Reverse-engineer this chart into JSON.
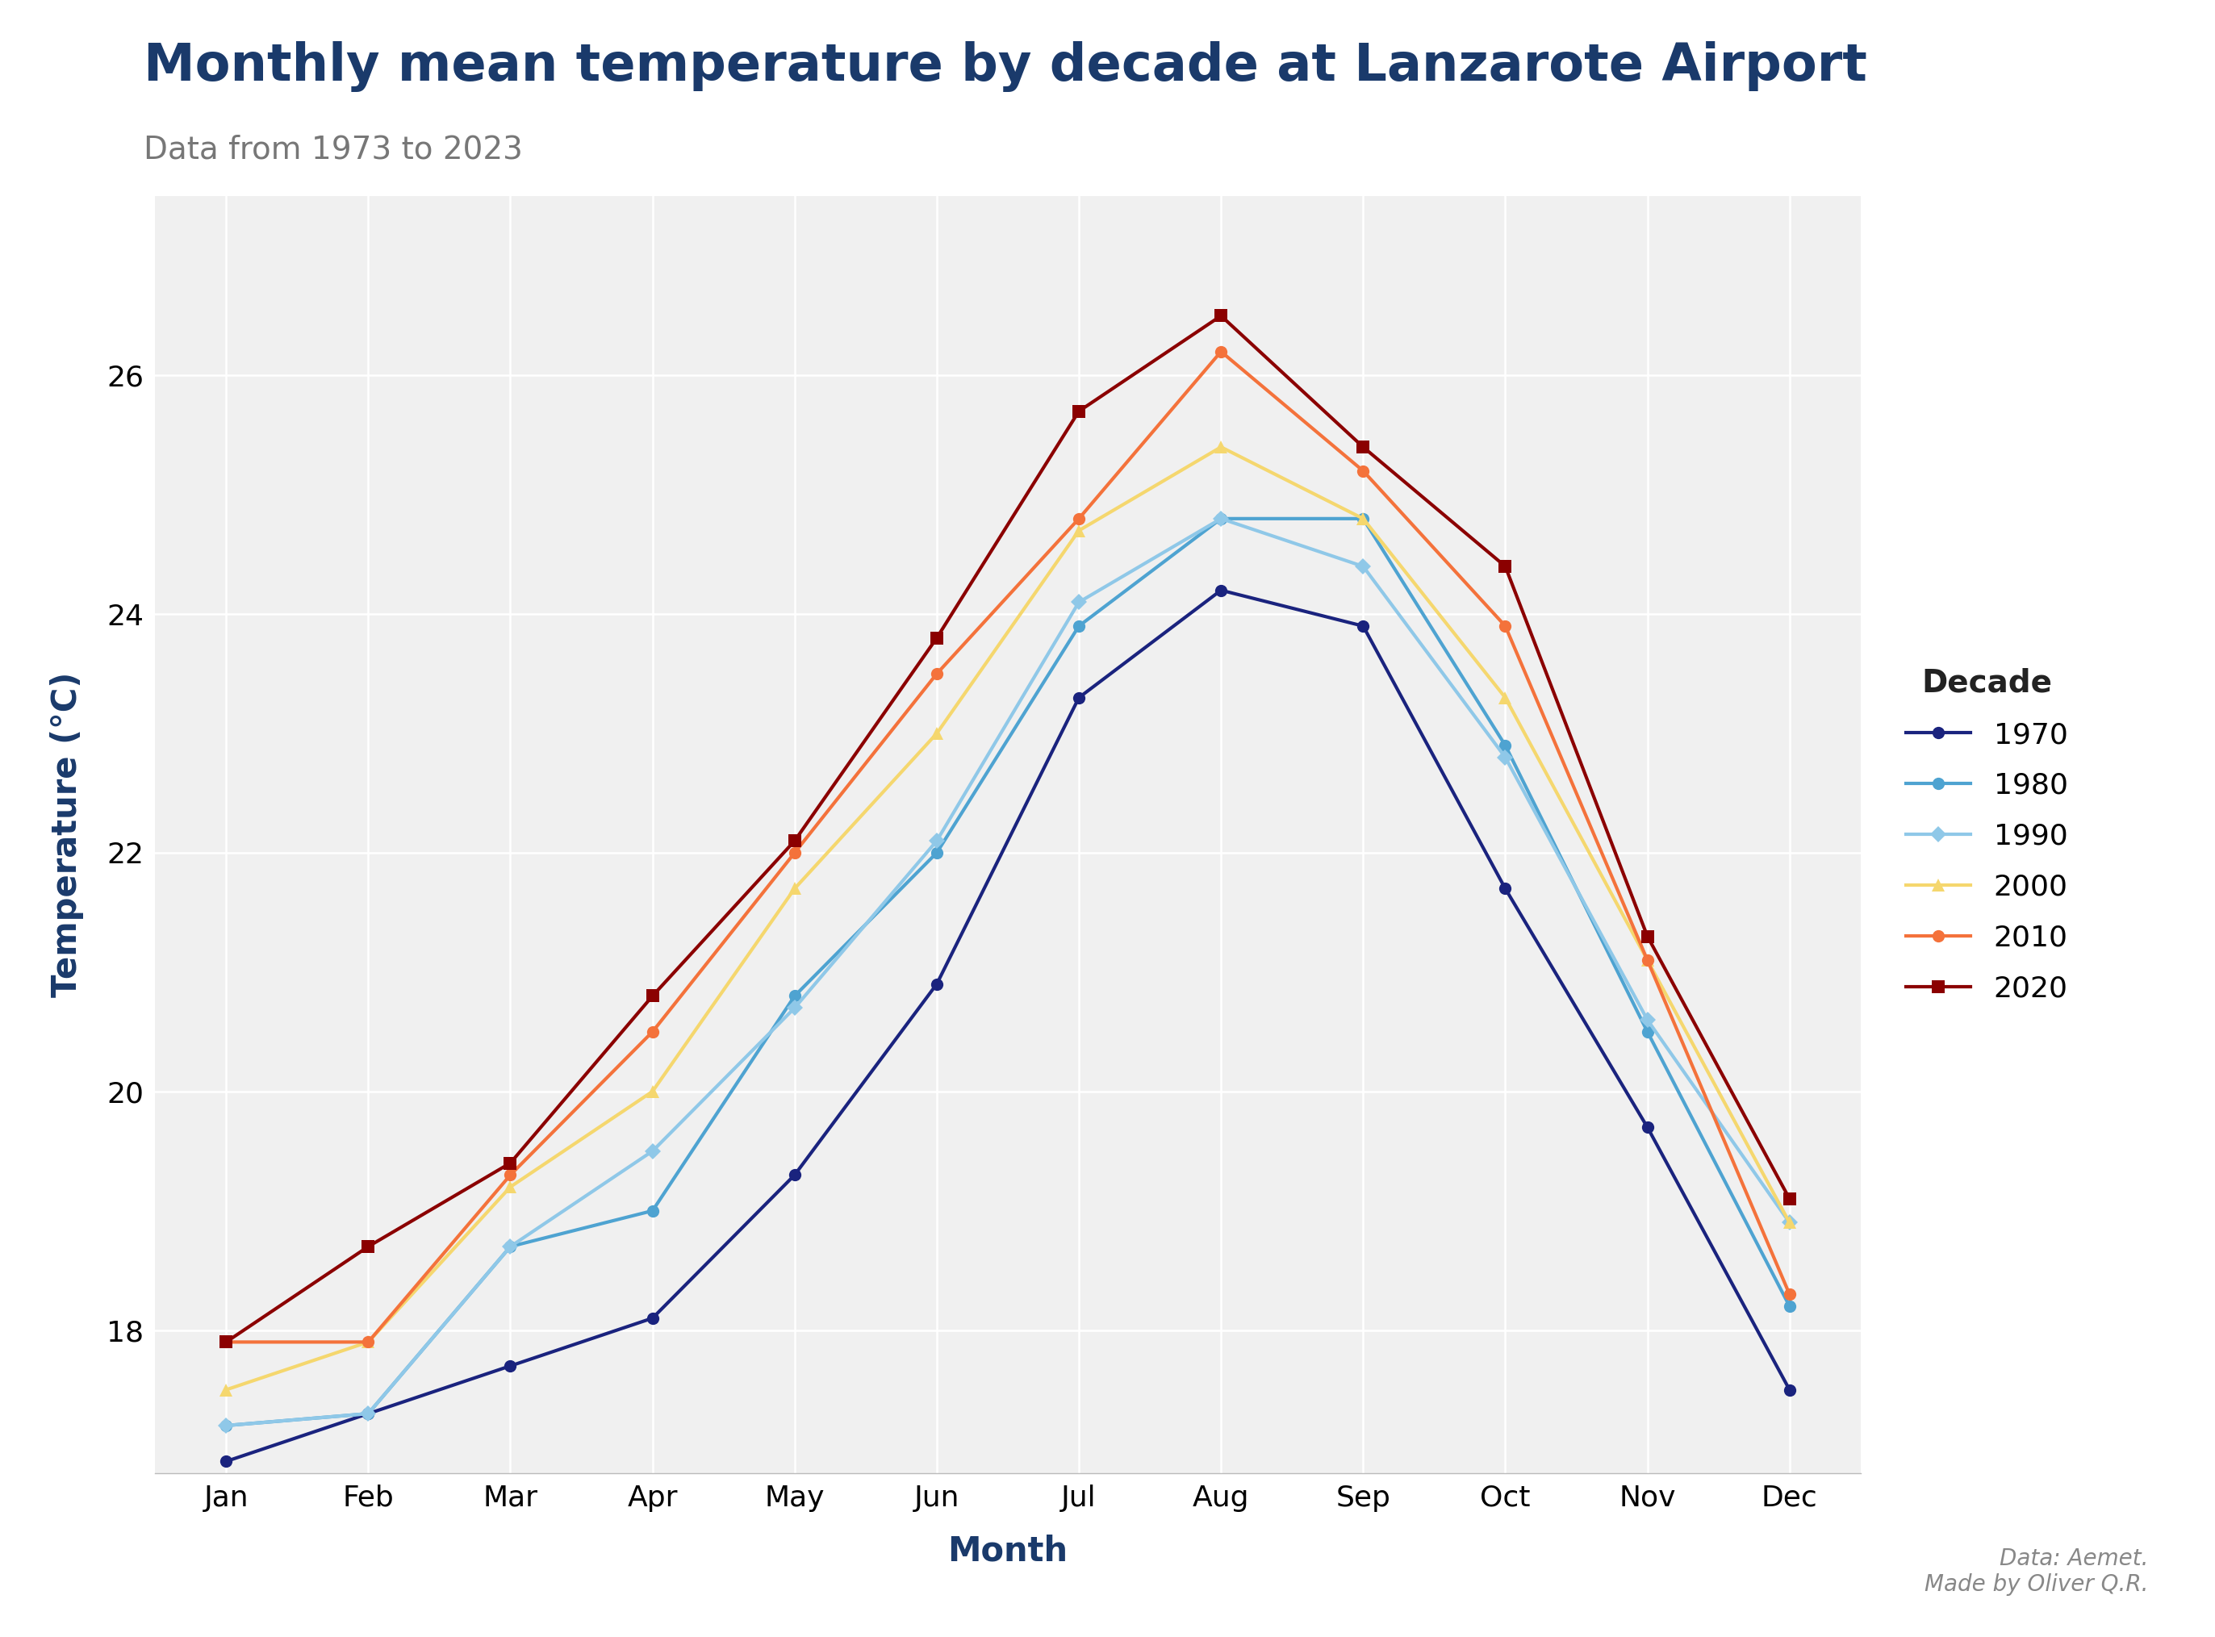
{
  "title": "Monthly mean temperature by decade at Lanzarote Airport",
  "subtitle": "Data from 1973 to 2023",
  "xlabel": "Month",
  "ylabel": "Temperature (°C)",
  "months": [
    "Jan",
    "Feb",
    "Mar",
    "Apr",
    "May",
    "Jun",
    "Jul",
    "Aug",
    "Sep",
    "Oct",
    "Nov",
    "Dec"
  ],
  "ylim": [
    16.8,
    27.5
  ],
  "yticks": [
    18,
    20,
    22,
    24,
    26
  ],
  "decades": {
    "1970": {
      "values": [
        16.9,
        17.3,
        17.7,
        18.1,
        19.3,
        20.9,
        23.3,
        24.2,
        23.9,
        21.7,
        19.7,
        17.5
      ],
      "color": "#1a237e",
      "marker": "o",
      "linewidth": 3.0,
      "markersize": 11
    },
    "1980": {
      "values": [
        17.2,
        17.3,
        18.7,
        19.0,
        20.8,
        22.0,
        23.9,
        24.8,
        24.8,
        22.9,
        20.5,
        18.2
      ],
      "color": "#4ea3d1",
      "marker": "o",
      "linewidth": 3.0,
      "markersize": 11
    },
    "1990": {
      "values": [
        17.2,
        17.3,
        18.7,
        19.5,
        20.7,
        22.1,
        24.1,
        24.8,
        24.4,
        22.8,
        20.6,
        18.9
      ],
      "color": "#8fc8e8",
      "marker": "D",
      "linewidth": 3.0,
      "markersize": 10
    },
    "2000": {
      "values": [
        17.5,
        17.9,
        19.2,
        20.0,
        21.7,
        23.0,
        24.7,
        25.4,
        24.8,
        23.3,
        21.1,
        18.9
      ],
      "color": "#f5d76e",
      "marker": "^",
      "linewidth": 3.0,
      "markersize": 12
    },
    "2010": {
      "values": [
        17.9,
        17.9,
        19.3,
        20.5,
        22.0,
        23.5,
        24.8,
        26.2,
        25.2,
        23.9,
        21.1,
        18.3
      ],
      "color": "#f4723b",
      "marker": "o",
      "linewidth": 3.0,
      "markersize": 11
    },
    "2020": {
      "values": [
        17.9,
        18.7,
        19.4,
        20.8,
        22.1,
        23.8,
        25.7,
        26.5,
        25.4,
        24.4,
        21.3,
        19.1
      ],
      "color": "#8b0000",
      "marker": "s",
      "linewidth": 3.0,
      "markersize": 11
    }
  },
  "title_color": "#1a3a6b",
  "subtitle_color": "#777777",
  "axis_label_color": "#1a3a6b",
  "background_color": "#f0f0f0",
  "grid_color": "#ffffff",
  "legend_title": "Decade",
  "attribution": "Data: Aemet.\nMade by Oliver Q.R.",
  "figsize_inches": [
    27.45,
    20.29
  ],
  "dpi": 100
}
